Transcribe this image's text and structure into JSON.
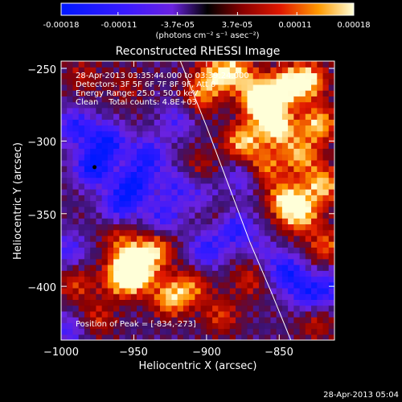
{
  "colorbar": {
    "tick_labels": [
      "-0.00018",
      "-0.00011",
      "-3.7e-05",
      "3.7e-05",
      "0.00011",
      "0.00018"
    ],
    "tick_values": [
      -0.00018,
      -0.00011,
      -3.7e-05,
      3.7e-05,
      0.00011,
      0.00018
    ],
    "range": [
      -0.00018,
      0.00018
    ],
    "units_label": "(photons cm⁻² s⁻¹ asec⁻²)"
  },
  "chart_data": {
    "type": "heatmap",
    "title": "Reconstructed RHESSI Image",
    "xlabel": "Heliocentric X (arcsec)",
    "ylabel": "Heliocentric Y (arcsec)",
    "xlim": [
      -1000,
      -812
    ],
    "ylim": [
      -437,
      -245
    ],
    "x_ticks": [
      -1000,
      -950,
      -900,
      -850
    ],
    "x_tick_labels": [
      "−1000",
      "−950",
      "−900",
      "−850"
    ],
    "y_ticks": [
      -400,
      -350,
      -300,
      -250
    ],
    "y_tick_labels": [
      "−400",
      "−350",
      "−300",
      "−250"
    ],
    "annotations": [
      "28-Apr-2013 03:35:44.000 to 03:39:24.000",
      "Detectors: 3F 5F 6F 7F 8F 9F, Att 0",
      "Energy Range: 25.0 - 50.0 keV",
      "Clean    Total counts: 4.8E+03"
    ],
    "peak_label": "Position of Peak = [-834,-273]",
    "peak_position": [
      -834,
      -273
    ],
    "limb_curve": [
      [
        -918,
        -245
      ],
      [
        -900,
        -290
      ],
      [
        -885,
        -330
      ],
      [
        -870,
        -370
      ],
      [
        -855,
        -405
      ],
      [
        -842,
        -437
      ]
    ],
    "marker_position": [
      -977,
      -318
    ],
    "blobs": [
      {
        "x": -952,
        "y": -383,
        "w": 0.9
      },
      {
        "x": -948,
        "y": -392,
        "w": 0.9
      },
      {
        "x": -935,
        "y": -375,
        "w": 0.8
      },
      {
        "x": -960,
        "y": -395,
        "w": 0.7
      },
      {
        "x": -925,
        "y": -408,
        "w": 0.85
      },
      {
        "x": -910,
        "y": -400,
        "w": 0.6
      },
      {
        "x": -990,
        "y": -398,
        "w": 0.5
      },
      {
        "x": -975,
        "y": -422,
        "w": 0.45
      },
      {
        "x": -865,
        "y": -268,
        "w": 1.0
      },
      {
        "x": -845,
        "y": -262,
        "w": 1.0
      },
      {
        "x": -830,
        "y": -258,
        "w": 0.95
      },
      {
        "x": -858,
        "y": -280,
        "w": 0.9
      },
      {
        "x": -875,
        "y": -300,
        "w": 0.9
      },
      {
        "x": -850,
        "y": -292,
        "w": 0.85
      },
      {
        "x": -823,
        "y": -288,
        "w": 0.9
      },
      {
        "x": -835,
        "y": -310,
        "w": 0.8
      },
      {
        "x": -820,
        "y": -330,
        "w": 0.9
      },
      {
        "x": -845,
        "y": -340,
        "w": 0.95
      },
      {
        "x": -835,
        "y": -350,
        "w": 0.9
      },
      {
        "x": -860,
        "y": -318,
        "w": 0.7
      },
      {
        "x": -895,
        "y": -255,
        "w": 0.75
      },
      {
        "x": -905,
        "y": -270,
        "w": 0.6
      },
      {
        "x": -880,
        "y": -252,
        "w": 0.8
      },
      {
        "x": -818,
        "y": -372,
        "w": 0.6
      },
      {
        "x": -855,
        "y": -370,
        "w": 0.55
      },
      {
        "x": -895,
        "y": -345,
        "w": 0.45
      },
      {
        "x": -870,
        "y": -395,
        "w": 0.45
      },
      {
        "x": -960,
        "y": -365,
        "w": 0.45
      },
      {
        "x": -985,
        "y": -255,
        "w": 0.35
      },
      {
        "x": -955,
        "y": -262,
        "w": 0.3
      },
      {
        "x": -905,
        "y": -318,
        "w": 0.35
      },
      {
        "x": -890,
        "y": -420,
        "w": 0.5
      },
      {
        "x": -825,
        "y": -425,
        "w": 0.4
      },
      {
        "x": -978,
        "y": -318,
        "w": -1.0
      },
      {
        "x": -968,
        "y": -300,
        "w": -0.9
      },
      {
        "x": -950,
        "y": -330,
        "w": -0.9
      },
      {
        "x": -990,
        "y": -290,
        "w": -0.75
      },
      {
        "x": -940,
        "y": -310,
        "w": -0.8
      },
      {
        "x": -960,
        "y": -345,
        "w": -0.75
      },
      {
        "x": -930,
        "y": -352,
        "w": -0.6
      },
      {
        "x": -900,
        "y": -375,
        "w": -0.7
      },
      {
        "x": -880,
        "y": -360,
        "w": -0.75
      },
      {
        "x": -858,
        "y": -372,
        "w": -0.8
      },
      {
        "x": -845,
        "y": -390,
        "w": -0.85
      },
      {
        "x": -830,
        "y": -405,
        "w": -0.75
      },
      {
        "x": -812,
        "y": -400,
        "w": -0.6
      },
      {
        "x": -900,
        "y": -340,
        "w": -0.6
      },
      {
        "x": -875,
        "y": -325,
        "w": -0.5
      },
      {
        "x": -920,
        "y": -285,
        "w": -0.5
      },
      {
        "x": -995,
        "y": -375,
        "w": -0.55
      },
      {
        "x": -995,
        "y": -430,
        "w": -0.5
      },
      {
        "x": -920,
        "y": -330,
        "w": -0.55
      }
    ],
    "grid": false
  },
  "footer": {
    "timestamp": "28-Apr-2013 05:04"
  }
}
